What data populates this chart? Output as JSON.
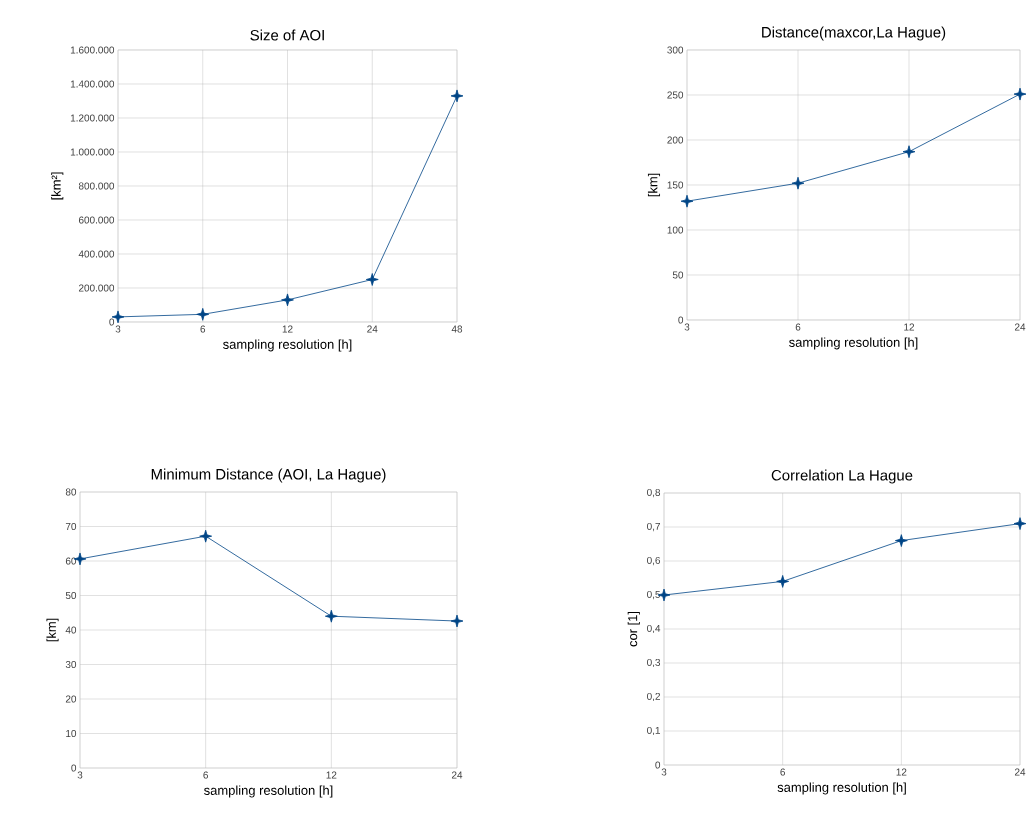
{
  "chart_data": [
    {
      "type": "line",
      "title": "Size of AOI",
      "xlabel": "sampling resolution [h]",
      "ylabel": "[km²]",
      "categories": [
        "3",
        "6",
        "12",
        "24",
        "48"
      ],
      "values": [
        30000,
        45000,
        130000,
        250000,
        1330000
      ],
      "color": "#004586",
      "marker": "star",
      "grid": true,
      "ylim": [
        0,
        1600000
      ],
      "yticks": [
        0,
        {
          "value": 200000,
          "label": "200.000"
        },
        {
          "value": 400000,
          "label": "400.000"
        },
        {
          "value": 600000,
          "label": "600.000"
        },
        {
          "value": 800000,
          "label": "800.000"
        },
        {
          "value": 1000000,
          "label": "1.000.000"
        },
        {
          "value": 1200000,
          "label": "1.200.000"
        },
        {
          "value": 1400000,
          "label": "1.400.000"
        },
        {
          "value": 1600000,
          "label": "1.600.000"
        }
      ]
    },
    {
      "type": "line",
      "title": "Distance(maxcor,La Hague)",
      "xlabel": "sampling resolution [h]",
      "ylabel": "[km]",
      "categories": [
        "3",
        "6",
        "12",
        "24"
      ],
      "values": [
        132,
        152,
        187,
        251
      ],
      "color": "#004586",
      "marker": "star",
      "grid": true,
      "ylim": [
        0,
        300
      ],
      "yticks": [
        0,
        50,
        100,
        150,
        200,
        250,
        300
      ]
    },
    {
      "type": "line",
      "title": "Minimum Distance (AOI, La Hague)",
      "xlabel": "sampling resolution [h]",
      "ylabel": "[km]",
      "categories": [
        "3",
        "6",
        "12",
        "24"
      ],
      "values": [
        60.6,
        67.2,
        44,
        42.6
      ],
      "color": "#004586",
      "marker": "star",
      "grid": true,
      "ylim": [
        0,
        80
      ],
      "yticks": [
        0,
        10,
        20,
        30,
        40,
        50,
        60,
        70,
        80
      ]
    },
    {
      "type": "line",
      "title": "Correlation La Hague",
      "xlabel": "sampling resolution [h]",
      "ylabel": "cor [1]",
      "categories": [
        "3",
        "6",
        "12",
        "24"
      ],
      "values": [
        0.5,
        0.54,
        0.66,
        0.71
      ],
      "color": "#004586",
      "marker": "star",
      "grid": true,
      "ylim": [
        0,
        0.8
      ],
      "yticks": [
        0,
        {
          "value": 0.1,
          "label": "0,1"
        },
        {
          "value": 0.2,
          "label": "0,2"
        },
        {
          "value": 0.3,
          "label": "0,3"
        },
        {
          "value": 0.4,
          "label": "0,4"
        },
        {
          "value": 0.5,
          "label": "0,5"
        },
        {
          "value": 0.6,
          "label": "0,6"
        },
        {
          "value": 0.7,
          "label": "0,7"
        },
        {
          "value": 0.8,
          "label": "0,8"
        }
      ]
    }
  ]
}
